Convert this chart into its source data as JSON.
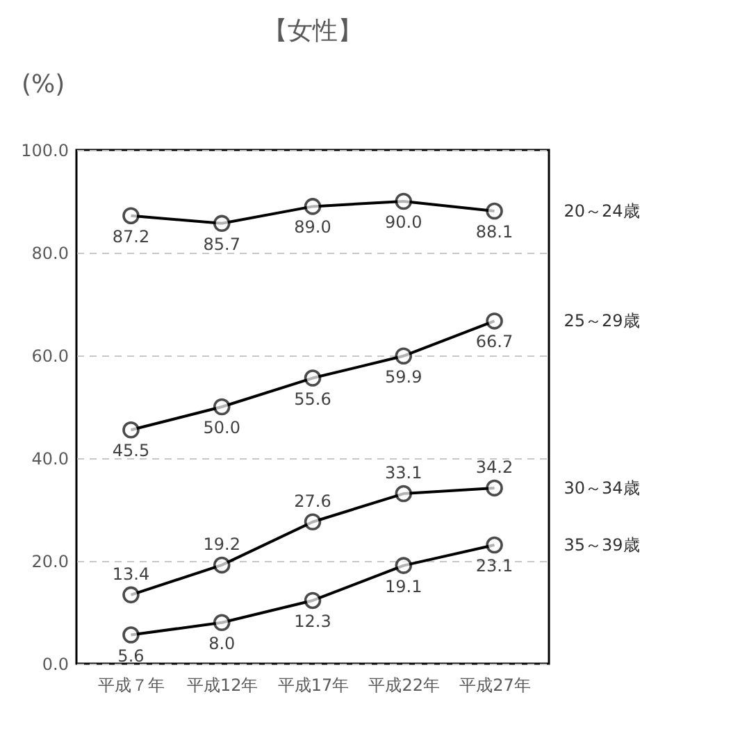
{
  "chart_data": {
    "type": "line",
    "title": "【女性】",
    "ylabel": "(%)",
    "categories": [
      "平成７年",
      "平成12年",
      "平成17年",
      "平成22年",
      "平成27年"
    ],
    "ylim": [
      0,
      100
    ],
    "yticks": [
      {
        "value": 0,
        "label": "0.0"
      },
      {
        "value": 20,
        "label": "20.0"
      },
      {
        "value": 40,
        "label": "40.0"
      },
      {
        "value": 60,
        "label": "60.0"
      },
      {
        "value": 80,
        "label": "80.0"
      },
      {
        "value": 100,
        "label": "100.0"
      }
    ],
    "grid": "y",
    "marker": "circle",
    "line_style": "solid",
    "legend": false,
    "series": [
      {
        "name": "20～24歳",
        "color": "#000000",
        "values": [
          87.2,
          85.7,
          89.0,
          90.0,
          88.1
        ],
        "value_labels": [
          "87.2",
          "85.7",
          "89.0",
          "90.0",
          "88.1"
        ]
      },
      {
        "name": "25～29歳",
        "color": "#000000",
        "values": [
          45.5,
          50.0,
          55.6,
          59.9,
          66.7
        ],
        "value_labels": [
          "45.5",
          "50.0",
          "55.6",
          "59.9",
          "66.7"
        ]
      },
      {
        "name": "30～34歳",
        "color": "#000000",
        "values": [
          13.4,
          19.2,
          27.6,
          33.1,
          34.2
        ],
        "value_labels": [
          "13.4",
          "19.2",
          "27.6",
          "33.1",
          "34.2"
        ]
      },
      {
        "name": "35～39歳",
        "color": "#000000",
        "values": [
          5.6,
          8.0,
          12.3,
          19.1,
          23.1
        ],
        "value_labels": [
          "5.6",
          "8.0",
          "12.3",
          "19.1",
          "23.1"
        ]
      }
    ]
  }
}
